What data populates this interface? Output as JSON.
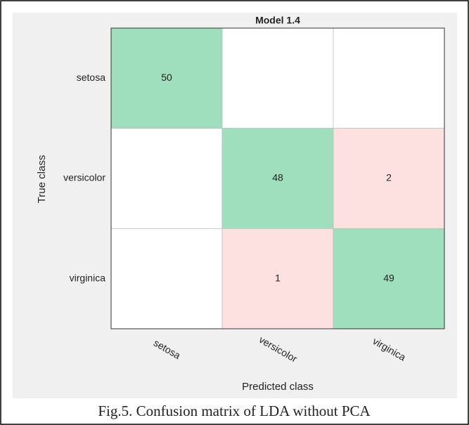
{
  "chart_data": {
    "type": "confusion_matrix",
    "title": "Model 1.4",
    "x_label": "Predicted class",
    "y_label": "True class",
    "x_categories": [
      "setosa",
      "versicolor",
      "virginica"
    ],
    "y_categories": [
      "setosa",
      "versicolor",
      "virginica"
    ],
    "values": [
      [
        50,
        null,
        null
      ],
      [
        null,
        48,
        2
      ],
      [
        null,
        1,
        49
      ]
    ],
    "correct_color": "#a0dfbe",
    "incorrect_color": "#fde0e0",
    "empty_color": "#ffffff"
  },
  "caption": "Fig.5. Confusion matrix of LDA without PCA"
}
